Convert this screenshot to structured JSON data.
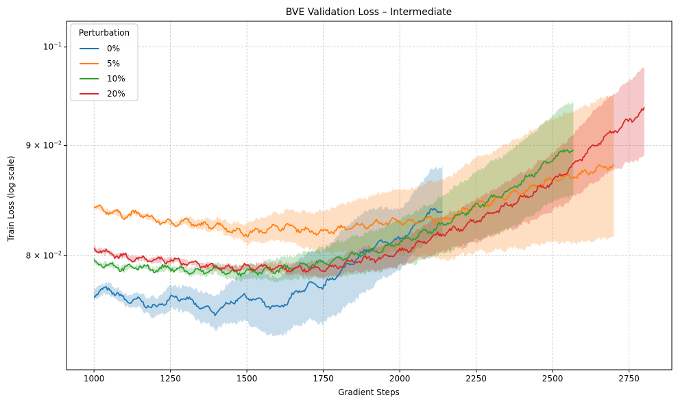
{
  "chart_data": {
    "type": "line",
    "title": "BVE Validation Loss – Intermediate",
    "xlabel": "Gradient Steps",
    "ylabel": "Train Loss (log scale)",
    "xlim": [
      910,
      2890
    ],
    "ylim": [
      0.0708,
      0.1028
    ],
    "yscale": "log",
    "grid": true,
    "legend": {
      "title": "Perturbation",
      "placement": "top-left"
    },
    "xticks": [
      1000,
      1250,
      1500,
      1750,
      2000,
      2250,
      2500,
      2750
    ],
    "xtick_labels": [
      "1000",
      "1250",
      "1500",
      "1750",
      "2000",
      "2250",
      "2500",
      "2750"
    ],
    "yticks": [
      {
        "value": 0.1,
        "mant": "10",
        "exp": "−1"
      },
      {
        "value": 0.09,
        "mant": "9 × 10",
        "exp": "−2"
      },
      {
        "value": 0.08,
        "mant": "8 × 10",
        "exp": "−2"
      }
    ],
    "series": [
      {
        "name": "0%",
        "color": "#1f77b4",
        "x": [
          1000,
          1050,
          1100,
          1150,
          1200,
          1250,
          1300,
          1350,
          1400,
          1450,
          1500,
          1550,
          1600,
          1650,
          1700,
          1750,
          1800,
          1850,
          1900,
          1950,
          2000,
          2050,
          2100,
          2140
        ],
        "mean": [
          0.0768,
          0.0772,
          0.0763,
          0.0762,
          0.0756,
          0.0765,
          0.0764,
          0.0757,
          0.0753,
          0.0762,
          0.0766,
          0.0761,
          0.0755,
          0.0766,
          0.0775,
          0.0774,
          0.0785,
          0.0796,
          0.0805,
          0.0812,
          0.0813,
          0.0826,
          0.0838,
          0.084
        ],
        "lower": [
          0.0764,
          0.0768,
          0.0758,
          0.0756,
          0.0748,
          0.0756,
          0.0754,
          0.0745,
          0.074,
          0.0745,
          0.0745,
          0.0738,
          0.0733,
          0.074,
          0.0746,
          0.0744,
          0.0753,
          0.0762,
          0.0772,
          0.0782,
          0.0787,
          0.0804,
          0.0814,
          0.0818
        ],
        "upper": [
          0.0773,
          0.0777,
          0.0768,
          0.0768,
          0.0764,
          0.0774,
          0.0774,
          0.077,
          0.0766,
          0.0779,
          0.0786,
          0.0786,
          0.078,
          0.0792,
          0.0803,
          0.0805,
          0.0818,
          0.0832,
          0.084,
          0.0842,
          0.084,
          0.0857,
          0.0876,
          0.088
        ]
      },
      {
        "name": "5%",
        "color": "#ff7f0e",
        "x": [
          1000,
          1050,
          1100,
          1150,
          1200,
          1250,
          1300,
          1350,
          1400,
          1450,
          1500,
          1550,
          1600,
          1650,
          1700,
          1750,
          1800,
          1850,
          1900,
          1950,
          2000,
          2050,
          2100,
          2150,
          2200,
          2250,
          2300,
          2350,
          2400,
          2450,
          2500,
          2550,
          2600,
          2650,
          2700
        ],
        "mean": [
          0.0842,
          0.0839,
          0.0835,
          0.0837,
          0.0831,
          0.0828,
          0.083,
          0.0826,
          0.0827,
          0.0822,
          0.0819,
          0.0822,
          0.0825,
          0.0825,
          0.0821,
          0.082,
          0.0823,
          0.0825,
          0.0827,
          0.0829,
          0.083,
          0.0829,
          0.0832,
          0.0831,
          0.0838,
          0.0845,
          0.0847,
          0.0853,
          0.0856,
          0.0863,
          0.0868,
          0.087,
          0.0873,
          0.0878,
          0.0882
        ],
        "lower": [
          0.084,
          0.0837,
          0.0833,
          0.0835,
          0.0829,
          0.0826,
          0.0827,
          0.0822,
          0.0822,
          0.0816,
          0.0811,
          0.0812,
          0.0813,
          0.0811,
          0.0805,
          0.0802,
          0.0803,
          0.0803,
          0.0803,
          0.0803,
          0.0803,
          0.08,
          0.08,
          0.0796,
          0.08,
          0.0804,
          0.0803,
          0.0806,
          0.0806,
          0.081,
          0.0812,
          0.0811,
          0.0812,
          0.0814,
          0.0816
        ],
        "upper": [
          0.0844,
          0.0841,
          0.0837,
          0.0839,
          0.0833,
          0.083,
          0.0833,
          0.0831,
          0.0833,
          0.0829,
          0.0828,
          0.0833,
          0.0838,
          0.084,
          0.0838,
          0.0839,
          0.0844,
          0.0848,
          0.0852,
          0.0856,
          0.0858,
          0.086,
          0.0866,
          0.0868,
          0.0878,
          0.0888,
          0.0893,
          0.0902,
          0.0908,
          0.0918,
          0.0926,
          0.0932,
          0.0937,
          0.0945,
          0.0952
        ]
      },
      {
        "name": "10%",
        "color": "#2ca02c",
        "x": [
          1000,
          1050,
          1100,
          1150,
          1200,
          1250,
          1300,
          1350,
          1400,
          1450,
          1500,
          1550,
          1600,
          1650,
          1700,
          1750,
          1800,
          1850,
          1900,
          1950,
          2000,
          2050,
          2100,
          2150,
          2200,
          2250,
          2300,
          2350,
          2400,
          2450,
          2500,
          2550,
          2570
        ],
        "mean": [
          0.0794,
          0.0792,
          0.0789,
          0.0791,
          0.0788,
          0.079,
          0.0787,
          0.0786,
          0.0789,
          0.0785,
          0.0786,
          0.0787,
          0.0788,
          0.079,
          0.0792,
          0.0794,
          0.0797,
          0.08,
          0.0803,
          0.0806,
          0.0812,
          0.0816,
          0.0822,
          0.0828,
          0.0836,
          0.0843,
          0.085,
          0.0856,
          0.0866,
          0.0876,
          0.0888,
          0.0896,
          0.0898
        ],
        "lower": [
          0.0792,
          0.079,
          0.0787,
          0.0789,
          0.0786,
          0.0788,
          0.0784,
          0.0783,
          0.0785,
          0.078,
          0.078,
          0.078,
          0.0779,
          0.078,
          0.0781,
          0.0781,
          0.0782,
          0.0784,
          0.0786,
          0.0788,
          0.0792,
          0.0794,
          0.0798,
          0.0802,
          0.0808,
          0.0813,
          0.0818,
          0.0822,
          0.083,
          0.0838,
          0.0848,
          0.0852,
          0.0854
        ],
        "upper": [
          0.0796,
          0.0794,
          0.0791,
          0.0793,
          0.079,
          0.0792,
          0.079,
          0.0789,
          0.0793,
          0.079,
          0.0792,
          0.0794,
          0.0797,
          0.08,
          0.0803,
          0.0807,
          0.0812,
          0.0816,
          0.082,
          0.0825,
          0.0832,
          0.0838,
          0.0846,
          0.0855,
          0.0865,
          0.0875,
          0.0884,
          0.0892,
          0.0904,
          0.0916,
          0.093,
          0.0942,
          0.0944
        ]
      },
      {
        "name": "20%",
        "color": "#d62728",
        "x": [
          1000,
          1050,
          1100,
          1150,
          1200,
          1250,
          1300,
          1350,
          1400,
          1450,
          1500,
          1550,
          1600,
          1650,
          1700,
          1750,
          1800,
          1850,
          1900,
          1950,
          2000,
          2050,
          2100,
          2150,
          2200,
          2250,
          2300,
          2350,
          2400,
          2450,
          2500,
          2550,
          2600,
          2650,
          2700,
          2750,
          2800
        ],
        "mean": [
          0.0806,
          0.0802,
          0.0799,
          0.0797,
          0.0796,
          0.0796,
          0.0794,
          0.0792,
          0.079,
          0.0789,
          0.079,
          0.079,
          0.079,
          0.0789,
          0.0789,
          0.0788,
          0.0791,
          0.0795,
          0.0797,
          0.0798,
          0.0803,
          0.0808,
          0.0815,
          0.082,
          0.0824,
          0.0831,
          0.0837,
          0.0844,
          0.085,
          0.0858,
          0.0866,
          0.0876,
          0.089,
          0.0903,
          0.0914,
          0.0924,
          0.0934
        ],
        "lower": [
          0.0804,
          0.08,
          0.0797,
          0.0795,
          0.0794,
          0.0794,
          0.0792,
          0.079,
          0.0788,
          0.0786,
          0.0787,
          0.0786,
          0.0786,
          0.0784,
          0.0783,
          0.0781,
          0.0783,
          0.0786,
          0.0787,
          0.0787,
          0.0791,
          0.0795,
          0.08,
          0.0804,
          0.0807,
          0.0812,
          0.0817,
          0.0822,
          0.0827,
          0.0833,
          0.0839,
          0.0847,
          0.0858,
          0.0868,
          0.0876,
          0.0883,
          0.089
        ],
        "upper": [
          0.0808,
          0.0804,
          0.0801,
          0.0799,
          0.0798,
          0.0798,
          0.0796,
          0.0794,
          0.0792,
          0.0792,
          0.0793,
          0.0794,
          0.0794,
          0.0794,
          0.0795,
          0.0795,
          0.0799,
          0.0804,
          0.0807,
          0.0809,
          0.0815,
          0.0821,
          0.083,
          0.0836,
          0.0841,
          0.085,
          0.0857,
          0.0866,
          0.0873,
          0.0883,
          0.0893,
          0.0905,
          0.0922,
          0.0938,
          0.0952,
          0.0965,
          0.0978
        ]
      }
    ]
  }
}
